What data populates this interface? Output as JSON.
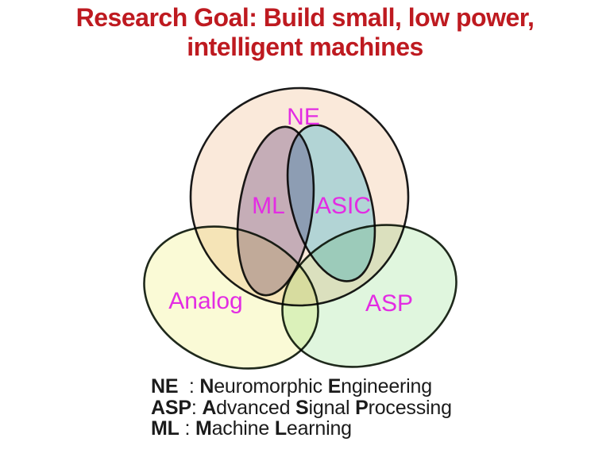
{
  "slide": {
    "title_lines": [
      "Research Goal: Build small, low power,",
      "intelligent machines"
    ],
    "title_color": "#be1a20",
    "background_color": "#ffffff"
  },
  "venn": {
    "label_color": "#e32ce3",
    "outline_color": "#1b1b1b",
    "sets": [
      {
        "id": "ne",
        "label": "NE",
        "color": "#fae9da"
      },
      {
        "id": "analog",
        "label": "Analog",
        "color": "#fafad6"
      },
      {
        "id": "asp",
        "label": "ASP",
        "color": "#e0f6de"
      },
      {
        "id": "ml",
        "label": "ML",
        "color": "#c9bed6"
      },
      {
        "id": "asic",
        "label": "ASIC",
        "color": "#b6e8fa"
      }
    ]
  },
  "legend": {
    "entries": [
      {
        "segments": [
          {
            "t": "NE",
            "b": true
          },
          {
            "t": "  : ",
            "b": false
          },
          {
            "t": "N",
            "b": true
          },
          {
            "t": "euromorphic ",
            "b": false
          },
          {
            "t": "E",
            "b": true
          },
          {
            "t": "ngineering",
            "b": false
          }
        ]
      },
      {
        "segments": [
          {
            "t": "ASP",
            "b": true
          },
          {
            "t": ": ",
            "b": false
          },
          {
            "t": "A",
            "b": true
          },
          {
            "t": "dvanced ",
            "b": false
          },
          {
            "t": "S",
            "b": true
          },
          {
            "t": "ignal ",
            "b": false
          },
          {
            "t": "P",
            "b": true
          },
          {
            "t": "rocessing",
            "b": false
          }
        ]
      },
      {
        "segments": [
          {
            "t": "ML",
            "b": true
          },
          {
            "t": " : ",
            "b": false
          },
          {
            "t": "M",
            "b": true
          },
          {
            "t": "achine ",
            "b": false
          },
          {
            "t": "L",
            "b": true
          },
          {
            "t": "earning",
            "b": false
          }
        ]
      }
    ]
  }
}
